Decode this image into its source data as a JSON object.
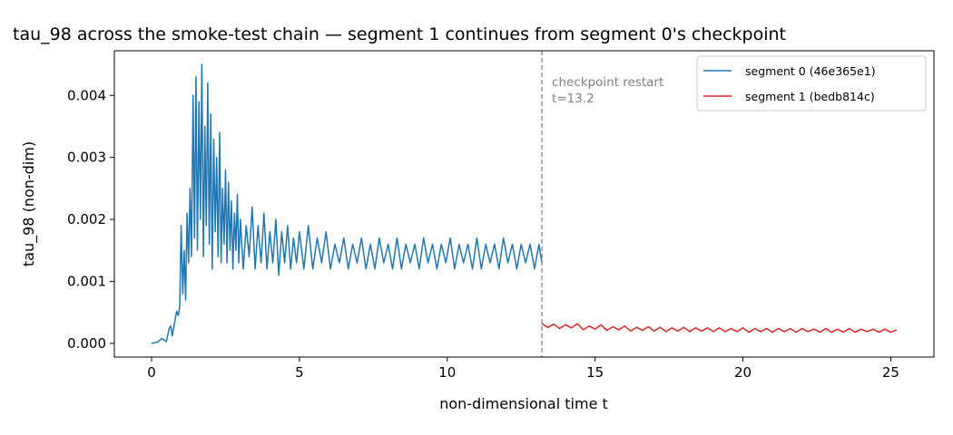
{
  "chart_data": {
    "type": "line",
    "title": "tau_98 across the smoke-test chain — segment 1 continues from segment 0's checkpoint",
    "xlabel": "non-dimensional time t",
    "ylabel": "tau_98 (non-dim)",
    "xlim": [
      -1.26,
      26.46
    ],
    "ylim": [
      -0.00022,
      0.00472
    ],
    "xticks": [
      0,
      5,
      10,
      15,
      20,
      25
    ],
    "xtick_labels": [
      "0",
      "5",
      "10",
      "15",
      "20",
      "25"
    ],
    "yticks": [
      0,
      0.001,
      0.002,
      0.003,
      0.004
    ],
    "ytick_labels": [
      "0.000",
      "0.001",
      "0.002",
      "0.003",
      "0.004"
    ],
    "grid": false,
    "legend_position": "top-right",
    "series": [
      {
        "name": "segment 0 (46e365e1)",
        "color": "#1f77b4",
        "x": [
          0.0,
          0.2,
          0.35,
          0.5,
          0.6,
          0.65,
          0.7,
          0.8,
          0.85,
          0.9,
          0.95,
          1.0,
          1.05,
          1.1,
          1.15,
          1.2,
          1.25,
          1.3,
          1.35,
          1.4,
          1.45,
          1.5,
          1.55,
          1.6,
          1.65,
          1.7,
          1.75,
          1.8,
          1.85,
          1.9,
          1.95,
          2.0,
          2.05,
          2.1,
          2.15,
          2.2,
          2.25,
          2.3,
          2.35,
          2.4,
          2.45,
          2.5,
          2.55,
          2.6,
          2.65,
          2.7,
          2.75,
          2.8,
          2.85,
          2.9,
          2.95,
          3.0,
          3.1,
          3.2,
          3.3,
          3.4,
          3.5,
          3.6,
          3.7,
          3.8,
          3.9,
          4.0,
          4.1,
          4.2,
          4.3,
          4.4,
          4.5,
          4.6,
          4.7,
          4.8,
          4.9,
          5.0,
          5.15,
          5.3,
          5.45,
          5.6,
          5.75,
          5.9,
          6.05,
          6.2,
          6.35,
          6.5,
          6.65,
          6.8,
          6.95,
          7.1,
          7.25,
          7.4,
          7.55,
          7.7,
          7.85,
          8.0,
          8.15,
          8.3,
          8.45,
          8.6,
          8.75,
          8.9,
          9.05,
          9.2,
          9.35,
          9.5,
          9.65,
          9.8,
          9.95,
          10.1,
          10.25,
          10.4,
          10.55,
          10.7,
          10.85,
          11.0,
          11.15,
          11.3,
          11.45,
          11.6,
          11.75,
          11.9,
          12.05,
          12.2,
          12.35,
          12.5,
          12.65,
          12.8,
          12.95,
          13.1,
          13.2
        ],
        "y": [
          0.0,
          2e-05,
          8e-05,
          3e-05,
          0.00025,
          0.00028,
          0.00012,
          0.0004,
          0.00052,
          0.00045,
          0.0006,
          0.0019,
          0.0008,
          0.0015,
          0.0007,
          0.0021,
          0.0013,
          0.0025,
          0.0014,
          0.004,
          0.0017,
          0.0043,
          0.0015,
          0.0039,
          0.002,
          0.0045,
          0.0014,
          0.0035,
          0.0019,
          0.0042,
          0.0016,
          0.0037,
          0.0012,
          0.0033,
          0.0018,
          0.003,
          0.0014,
          0.0034,
          0.0013,
          0.0025,
          0.0016,
          0.0028,
          0.0013,
          0.0026,
          0.0015,
          0.0023,
          0.0012,
          0.0021,
          0.0015,
          0.0024,
          0.0013,
          0.002,
          0.0012,
          0.0019,
          0.0014,
          0.0022,
          0.0012,
          0.0019,
          0.0013,
          0.0021,
          0.0012,
          0.0018,
          0.0013,
          0.002,
          0.0011,
          0.0018,
          0.0013,
          0.0019,
          0.0012,
          0.0017,
          0.0013,
          0.0018,
          0.0012,
          0.0019,
          0.0012,
          0.0017,
          0.0013,
          0.0018,
          0.0012,
          0.0016,
          0.0013,
          0.0017,
          0.0012,
          0.0016,
          0.0013,
          0.0017,
          0.0012,
          0.0016,
          0.0012,
          0.0017,
          0.0013,
          0.0016,
          0.0012,
          0.0017,
          0.0012,
          0.0016,
          0.0013,
          0.0016,
          0.0012,
          0.0017,
          0.0013,
          0.0016,
          0.0012,
          0.0016,
          0.0013,
          0.0017,
          0.0012,
          0.0016,
          0.0013,
          0.0016,
          0.0012,
          0.0017,
          0.0012,
          0.0016,
          0.0013,
          0.0016,
          0.0012,
          0.0017,
          0.0013,
          0.0016,
          0.0012,
          0.0016,
          0.0013,
          0.0016,
          0.0012,
          0.0016,
          0.0013
        ]
      },
      {
        "name": "segment 1 (bedb814c)",
        "color": "#d62728",
        "x": [
          13.2,
          13.4,
          13.6,
          13.8,
          14.0,
          14.2,
          14.4,
          14.6,
          14.8,
          15.0,
          15.2,
          15.4,
          15.6,
          15.8,
          16.0,
          16.2,
          16.4,
          16.6,
          16.8,
          17.0,
          17.2,
          17.4,
          17.6,
          17.8,
          18.0,
          18.2,
          18.4,
          18.6,
          18.8,
          19.0,
          19.2,
          19.4,
          19.6,
          19.8,
          20.0,
          20.2,
          20.4,
          20.6,
          20.8,
          21.0,
          21.2,
          21.4,
          21.6,
          21.8,
          22.0,
          22.2,
          22.4,
          22.6,
          22.8,
          23.0,
          23.2,
          23.4,
          23.6,
          23.8,
          24.0,
          24.2,
          24.4,
          24.6,
          24.8,
          25.0,
          25.2
        ],
        "y": [
          0.00032,
          0.00026,
          0.00031,
          0.00024,
          0.0003,
          0.00025,
          0.00032,
          0.00022,
          0.00028,
          0.00023,
          0.0003,
          0.00021,
          0.00027,
          0.00022,
          0.00028,
          0.0002,
          0.00026,
          0.00021,
          0.00027,
          0.0002,
          0.00026,
          0.00019,
          0.00025,
          0.0002,
          0.00026,
          0.00019,
          0.00025,
          0.0002,
          0.00025,
          0.00019,
          0.00025,
          0.00019,
          0.00024,
          0.00019,
          0.00025,
          0.00018,
          0.00024,
          0.00019,
          0.00024,
          0.00018,
          0.00024,
          0.00019,
          0.00024,
          0.00018,
          0.00024,
          0.00019,
          0.00023,
          0.00018,
          0.00024,
          0.00018,
          0.00023,
          0.00018,
          0.00024,
          0.00018,
          0.00023,
          0.00019,
          0.00023,
          0.00018,
          0.00023,
          0.00018,
          0.00022
        ]
      }
    ],
    "annotations": [
      {
        "type": "vline",
        "x": 13.2,
        "color": "#808080",
        "style": "dashed",
        "lines": [
          "checkpoint restart",
          "t=13.2"
        ]
      }
    ]
  }
}
